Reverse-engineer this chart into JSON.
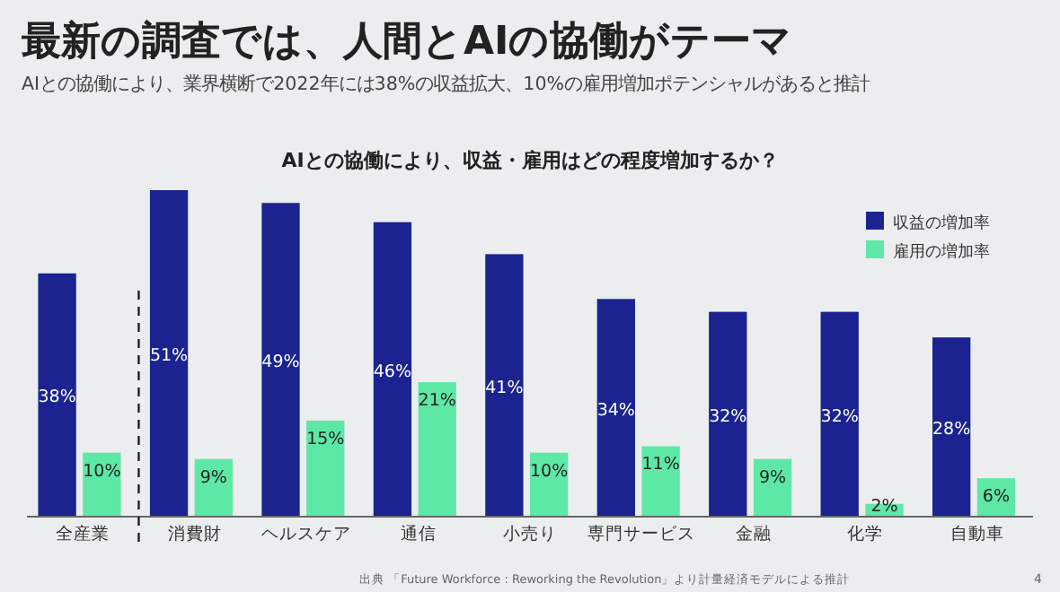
{
  "chart_data": {
    "type": "bar",
    "title": "最新の調査では、人間とAIの協働がテーマ",
    "subtitle": "AIとの協働により、業界横断で2022年には38%の収益拡大、10%の雇用増加ポテンシャルがあると推計",
    "xlabel": "AIとの協働により、収益・雇用はどの程度増加するか？",
    "categories": [
      "全産業",
      "消費財",
      "ヘルスケア",
      "通信",
      "小売り",
      "専門サービス",
      "金融",
      "化学",
      "自動車"
    ],
    "series": [
      {
        "name": "収益の増加率",
        "color": "#1b2390",
        "values": [
          38,
          51,
          49,
          46,
          41,
          34,
          32,
          32,
          28
        ],
        "value_labels": [
          "38%",
          "51%",
          "49%",
          "46%",
          "41%",
          "34%",
          "32%",
          "32%",
          "28%"
        ]
      },
      {
        "name": "雇用の増加率",
        "color": "#5de8a6",
        "values": [
          10,
          9,
          15,
          21,
          10,
          11,
          9,
          2,
          6
        ],
        "value_labels": [
          "10%",
          "9%",
          "15%",
          "21%",
          "10%",
          "11%",
          "9%",
          "2%",
          "6%"
        ]
      }
    ],
    "legend": "top right",
    "grid": false,
    "annotations": [
      "出典 「Future Workforce : Reworking the Revolution」より計量経済モデルによる推計",
      "4"
    ]
  }
}
